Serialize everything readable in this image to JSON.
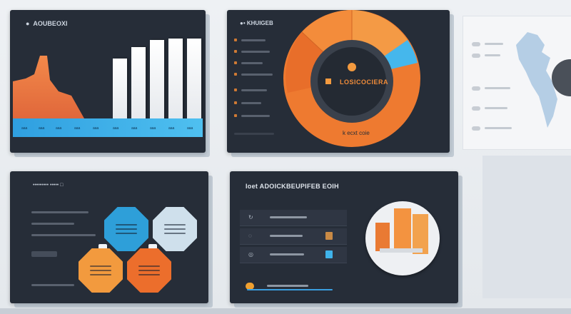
{
  "panel1": {
    "title": "●  AOUBEOXI",
    "axis_ticks": [
      "aaa",
      "aaa",
      "aaa",
      "aaa",
      "aaa",
      "aaa",
      "aaa",
      "aaa",
      "aaa",
      "aaa",
      "aaa"
    ]
  },
  "panel2": {
    "title": "●• KHUIGEB",
    "donut_label": "LOSICOCIERA",
    "donut_footer": "k ecxt coie"
  },
  "panel3": {
    "title": "••••••••• ••••• □"
  },
  "panel4": {
    "title": "Ioet ADOICKBEUPIFEB EOIH",
    "row_icons": [
      "↻",
      "◌",
      "◎"
    ]
  },
  "colors": {
    "orange": "#f08a38",
    "blue": "#36aee8",
    "dark": "#262d38",
    "light": "#eef1f4"
  }
}
